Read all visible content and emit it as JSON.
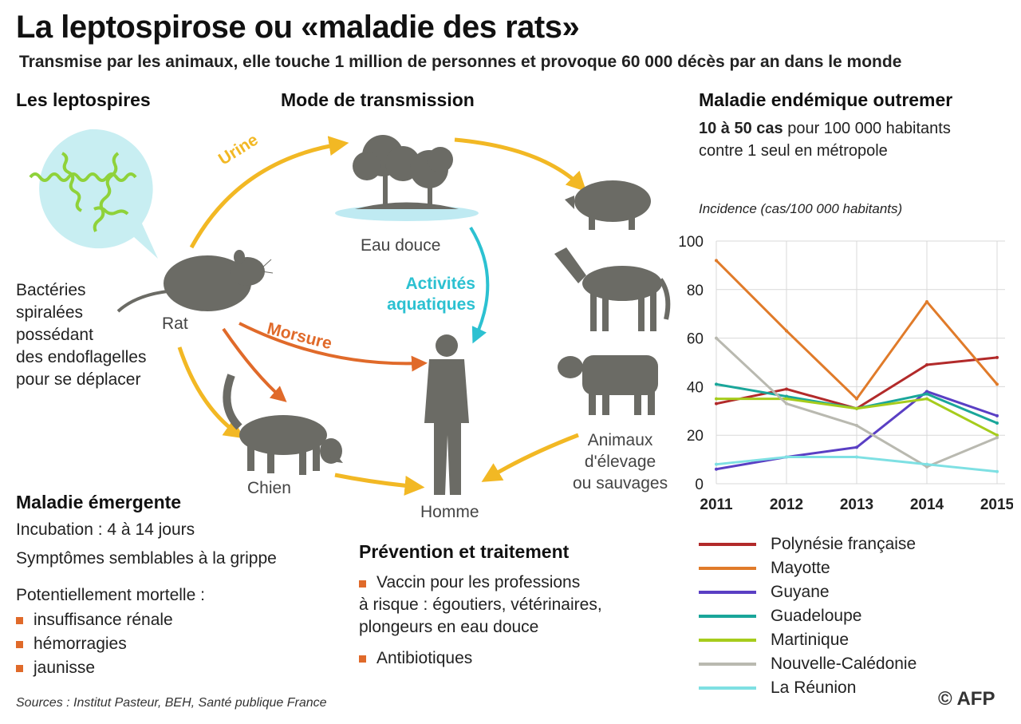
{
  "header": {
    "title": "La leptospirose ou «maladie des rats»",
    "subtitle": "Transmise par les animaux, elle touche 1 million de personnes et provoque 60 000 décès par an dans le monde"
  },
  "leptospires": {
    "heading": "Les leptospires",
    "description": [
      "Bactéries",
      "spiralées",
      "possédant",
      "des endoflagelles",
      "pour se déplacer"
    ]
  },
  "transmission": {
    "heading": "Mode de transmission",
    "labels": {
      "rat": "Rat",
      "eau": "Eau douce",
      "chien": "Chien",
      "homme": "Homme",
      "animaux": [
        "Animaux",
        "d'élevage",
        "ou sauvages"
      ],
      "urine": "Urine",
      "morsure": "Morsure",
      "activites": [
        "Activités",
        "aquatiques"
      ]
    }
  },
  "emergente": {
    "heading": "Maladie émergente",
    "incubation": "Incubation : 4 à 14 jours",
    "symptomes": "Symptômes semblables à la grippe",
    "mortelle": "Potentiellement mortelle :",
    "items": [
      "insuffisance rénale",
      "hémorragies",
      "jaunisse"
    ]
  },
  "prevention": {
    "heading": "Prévention et traitement",
    "items": [
      [
        "Vaccin pour les professions",
        "à risque : égoutiers, vétérinaires,",
        "plongeurs en eau douce"
      ],
      [
        "Antibiotiques"
      ]
    ]
  },
  "endemique": {
    "heading": "Maladie endémique outremer",
    "line1_bold": "10 à 50 cas",
    "line1_rest": " pour 100 000 habitants",
    "line2": "contre 1 seul en métropole"
  },
  "chart_data": {
    "type": "line",
    "ylabel": "Incidence (cas/100 000 habitants)",
    "x": [
      "2011",
      "2012",
      "2013",
      "2014",
      "2015"
    ],
    "ylim": [
      0,
      100
    ],
    "yticks": [
      0,
      20,
      40,
      60,
      80,
      100
    ],
    "grid": true,
    "legend_placement": "bottom",
    "series": [
      {
        "name": "Polynésie française",
        "color": "#b22a2a",
        "values": [
          33,
          39,
          31,
          49,
          52
        ]
      },
      {
        "name": "Mayotte",
        "color": "#e07b2a",
        "values": [
          92,
          63,
          35,
          75,
          41
        ]
      },
      {
        "name": "Guyane",
        "color": "#5a3fc4",
        "values": [
          6,
          11,
          15,
          38,
          28
        ]
      },
      {
        "name": "Guadeloupe",
        "color": "#1aa69a",
        "values": [
          41,
          36,
          31,
          37,
          25
        ]
      },
      {
        "name": "Martinique",
        "color": "#a6cc1c",
        "values": [
          35,
          35,
          31,
          35,
          20
        ]
      },
      {
        "name": "Nouvelle-Calédonie",
        "color": "#b9b9b0",
        "values": [
          60,
          33,
          24,
          7,
          19
        ]
      },
      {
        "name": "La Réunion",
        "color": "#7ee0e3",
        "values": [
          8,
          11,
          11,
          8,
          5
        ]
      }
    ]
  },
  "footer": {
    "sources": "Sources : Institut Pasteur, BEH, Santé publique France",
    "credit": "© AFP"
  },
  "colors": {
    "urine_arrow": "#f2b824",
    "morsure_arrow": "#e06a2a",
    "aquatic_arrow": "#2cc1d1",
    "animal_gray": "#6b6b65",
    "bullet": "#e06a2a"
  }
}
